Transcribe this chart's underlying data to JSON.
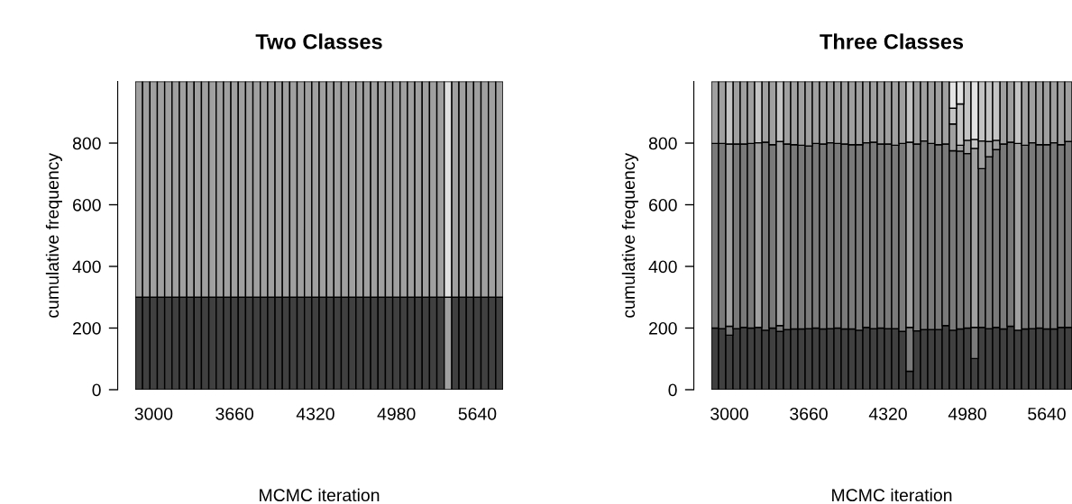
{
  "chart_data": [
    {
      "type": "bar",
      "title": "Two Classes",
      "xlabel": "MCMC iteration",
      "ylabel": "cumulative frequency",
      "stacked": true,
      "ylim": [
        0,
        1000
      ],
      "yticks": [
        0,
        200,
        400,
        600,
        800
      ],
      "categories": [
        null,
        null,
        "3000",
        null,
        null,
        null,
        null,
        null,
        null,
        null,
        null,
        null,
        null,
        "3660",
        null,
        null,
        null,
        null,
        null,
        null,
        null,
        null,
        null,
        null,
        "4320",
        null,
        null,
        null,
        null,
        null,
        null,
        null,
        null,
        null,
        null,
        "4980",
        null,
        null,
        null,
        null,
        null,
        null,
        null,
        null,
        null,
        null,
        "5640",
        null,
        null,
        null
      ],
      "series": [
        {
          "color": "#404040",
          "values": [
            300,
            300,
            300,
            300,
            300,
            300,
            300,
            300,
            300,
            300,
            300,
            300,
            300,
            300,
            300,
            300,
            300,
            300,
            300,
            300,
            300,
            300,
            300,
            300,
            300,
            300,
            300,
            300,
            300,
            300,
            300,
            300,
            300,
            300,
            300,
            300,
            300,
            300,
            300,
            300,
            300,
            300,
            null,
            300,
            300,
            300,
            300,
            300,
            300,
            300
          ]
        },
        {
          "color": "#a0a0a0",
          "values": [
            700,
            700,
            700,
            700,
            700,
            700,
            700,
            700,
            700,
            700,
            700,
            700,
            700,
            700,
            700,
            700,
            700,
            700,
            700,
            700,
            700,
            700,
            700,
            700,
            700,
            700,
            700,
            700,
            700,
            700,
            700,
            700,
            700,
            700,
            700,
            700,
            700,
            700,
            700,
            700,
            700,
            700,
            300,
            700,
            700,
            700,
            700,
            700,
            700,
            700
          ]
        },
        {
          "color": "#e0e0e0",
          "values": [
            null,
            null,
            null,
            null,
            null,
            null,
            null,
            null,
            null,
            null,
            null,
            null,
            null,
            null,
            null,
            null,
            null,
            null,
            null,
            null,
            null,
            null,
            null,
            null,
            null,
            null,
            null,
            null,
            null,
            null,
            null,
            null,
            null,
            null,
            null,
            null,
            null,
            null,
            null,
            null,
            null,
            null,
            700,
            null,
            null,
            null,
            null,
            null,
            null,
            null
          ]
        }
      ]
    },
    {
      "type": "bar",
      "title": "Three Classes",
      "xlabel": "MCMC iteration",
      "ylabel": "cumulative frequency",
      "stacked": true,
      "ylim": [
        0,
        1000
      ],
      "yticks": [
        0,
        200,
        400,
        600,
        800
      ],
      "categories": [
        null,
        null,
        "3000",
        null,
        null,
        null,
        null,
        null,
        null,
        null,
        null,
        null,
        null,
        "3660",
        null,
        null,
        null,
        null,
        null,
        null,
        null,
        null,
        null,
        null,
        "4320",
        null,
        null,
        null,
        null,
        null,
        null,
        null,
        null,
        null,
        null,
        "4980",
        null,
        null,
        null,
        null,
        null,
        null,
        null,
        null,
        null,
        null,
        "5640",
        null,
        null,
        null
      ],
      "series": [
        {
          "color": "#404040",
          "values": [
            200,
            198,
            177,
            198,
            202,
            200,
            202,
            193,
            200,
            189,
            195,
            197,
            197,
            198,
            200,
            197,
            198,
            200,
            197,
            197,
            193,
            202,
            198,
            200,
            198,
            198,
            189,
            60,
            191,
            195,
            195,
            195,
            208,
            193,
            197,
            200,
            101,
            202,
            198,
            202,
            197,
            206,
            193,
            197,
            198,
            200,
            197,
            197,
            202,
            202
          ]
        },
        {
          "color": "#7a7a7a",
          "values": [
            599,
            601,
            29,
            599,
            595,
            599,
            null,
            610,
            595,
            19,
            602,
            598,
            596,
            593,
            599,
            600,
            603,
            599,
            600,
            598,
            602,
            599,
            605,
            597,
            599,
            595,
            610,
            142,
            606,
            612,
            604,
            600,
            589,
            582,
            577,
            566,
            101,
            515,
            558,
            577,
            600,
            597,
            null,
            596,
            603,
            595,
            598,
            604,
            593,
            603
          ]
        },
        {
          "color": "#a0a0a0",
          "values": [
            201,
            201,
            591,
            203,
            203,
            201,
            599,
            197,
            205,
            597,
            203,
            205,
            207,
            209,
            201,
            203,
            199,
            201,
            203,
            205,
            205,
            199,
            197,
            203,
            203,
            207,
            201,
            601,
            203,
            193,
            201,
            205,
            203,
            87,
            19,
            43,
            581,
            90,
            49,
            30,
            203,
            197,
            606,
            207,
            199,
            205,
            205,
            199,
            205,
            195
          ]
        },
        {
          "color": "#c4c4c4",
          "values": [
            null,
            null,
            203,
            null,
            null,
            null,
            199,
            null,
            null,
            195,
            null,
            null,
            null,
            null,
            null,
            null,
            null,
            null,
            null,
            null,
            null,
            null,
            null,
            null,
            null,
            null,
            null,
            197,
            null,
            null,
            null,
            null,
            null,
            51,
            134,
            191,
            29,
            193,
            195,
            191,
            null,
            null,
            201,
            null,
            null,
            null,
            null,
            null,
            null,
            null
          ]
        },
        {
          "color": "#e4e4e4",
          "values": [
            null,
            null,
            null,
            null,
            null,
            null,
            null,
            null,
            null,
            null,
            null,
            null,
            null,
            null,
            null,
            null,
            null,
            null,
            null,
            null,
            null,
            null,
            null,
            null,
            null,
            null,
            null,
            null,
            null,
            null,
            null,
            null,
            null,
            86,
            73,
            null,
            188,
            null,
            null,
            null,
            null,
            null,
            null,
            null,
            null,
            null,
            null,
            null,
            null,
            null
          ]
        }
      ]
    }
  ]
}
